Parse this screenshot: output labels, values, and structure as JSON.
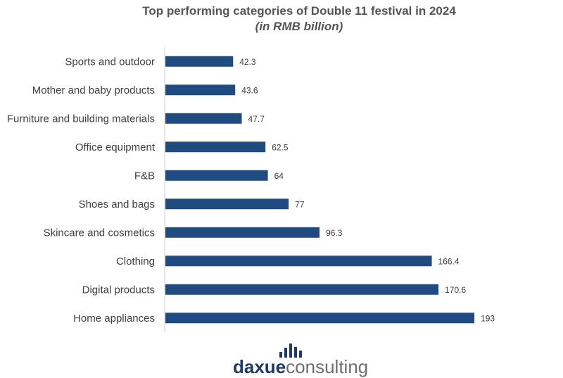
{
  "chart_data": {
    "type": "bar",
    "orientation": "horizontal",
    "title": "Top performing categories of Double 11 festival in 2024",
    "subtitle": "(in RMB billion)",
    "categories": [
      "Sports and outdoor",
      "Mother and baby products",
      "Furniture and building materials",
      "Office equipment",
      "F&B",
      "Shoes and bags",
      "Skincare and cosmetics",
      "Clothing",
      "Digital products",
      "Home appliances"
    ],
    "values": [
      42.3,
      43.6,
      47.7,
      62.5,
      64,
      77,
      96.3,
      166.4,
      170.6,
      193
    ],
    "value_labels": [
      "42.3",
      "43.6",
      "47.7",
      "62.5",
      "64",
      "77",
      "96.3",
      "166.4",
      "170.6",
      "193"
    ],
    "xlim": [
      0,
      200
    ],
    "xlabel": "",
    "ylabel": "",
    "grid": false,
    "legend": "none"
  },
  "colors": {
    "bar": "#1f4b80",
    "axis": "#d0d0d0",
    "logo_icon": "#1f3a66"
  },
  "logo": {
    "part1": "daxue",
    "part2": "consulting"
  }
}
